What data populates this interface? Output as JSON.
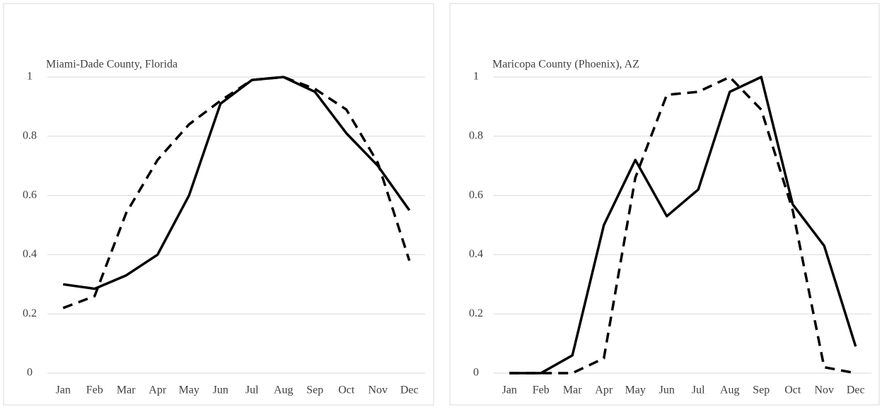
{
  "chart_data": [
    {
      "type": "line",
      "title": "Miami-Dade County, Florida",
      "categories": [
        "Jan",
        "Feb",
        "Mar",
        "Apr",
        "May",
        "Jun",
        "Jul",
        "Aug",
        "Sep",
        "Oct",
        "Nov",
        "Dec"
      ],
      "series": [
        {
          "color": "#000000",
          "dash": false,
          "values": [
            0.3,
            0.285,
            0.33,
            0.4,
            0.6,
            0.91,
            0.99,
            1.0,
            0.95,
            0.81,
            0.7,
            0.55
          ]
        },
        {
          "color": "#000000",
          "dash": true,
          "values": [
            0.22,
            0.26,
            0.54,
            0.72,
            0.84,
            0.92,
            0.99,
            1.0,
            0.96,
            0.89,
            0.71,
            0.38
          ]
        }
      ],
      "ylim": [
        0,
        1
      ],
      "yticks": [
        0,
        0.2,
        0.4,
        0.6,
        0.8,
        1
      ],
      "grid": true
    },
    {
      "type": "line",
      "title": "Maricopa County (Phoenix), AZ",
      "categories": [
        "Jan",
        "Feb",
        "Mar",
        "Apr",
        "May",
        "Jun",
        "Jul",
        "Aug",
        "Sep",
        "Oct",
        "Nov",
        "Dec"
      ],
      "series": [
        {
          "color": "#000000",
          "dash": false,
          "values": [
            0,
            0,
            0.06,
            0.5,
            0.72,
            0.53,
            0.62,
            0.95,
            1.0,
            0.57,
            0.43,
            0.09
          ]
        },
        {
          "color": "#000000",
          "dash": true,
          "values": [
            0,
            0,
            0,
            0.05,
            0.66,
            0.94,
            0.95,
            1.0,
            0.89,
            0.55,
            0.02,
            0
          ]
        }
      ],
      "ylim": [
        0,
        1
      ],
      "yticks": [
        0,
        0.2,
        0.4,
        0.6,
        0.8,
        1
      ],
      "grid": true
    }
  ]
}
